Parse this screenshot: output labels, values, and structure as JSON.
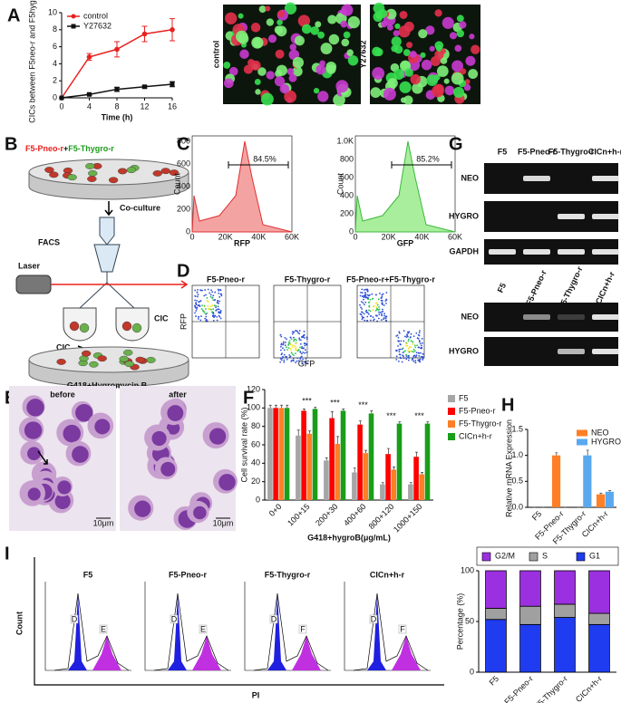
{
  "panel_letters": [
    "A",
    "B",
    "C",
    "D",
    "E",
    "F",
    "G",
    "H",
    "I"
  ],
  "chart_data": [
    {
      "type": "line",
      "x_label": "Time (h)",
      "y_label": "CICs between F5neo-r and F5hygro-r",
      "x": [
        0,
        4,
        8,
        12,
        16
      ],
      "xlim": [
        0,
        16
      ],
      "xticks": [
        0,
        4,
        8,
        12,
        16
      ],
      "ylim": [
        0,
        10
      ],
      "yticks": [
        0,
        2,
        4,
        6,
        8,
        10
      ],
      "legend": "upper-left",
      "series": [
        {
          "name": "control",
          "color": "#e8211f",
          "marker": "circle",
          "values": [
            0,
            4.8,
            5.7,
            7.5,
            8
          ],
          "errors": [
            0,
            0.4,
            0.9,
            0.9,
            1.3
          ]
        },
        {
          "name": "Y27632",
          "color": "#111111",
          "marker": "square",
          "values": [
            0,
            0.4,
            1,
            1.3,
            1.6
          ],
          "errors": [
            0,
            0.1,
            0.25,
            0.15,
            0.3
          ]
        }
      ]
    },
    {
      "type": "bar",
      "x_label": "G418+hygroB(μg/mL)",
      "y_label": "Cell survival rate (%)",
      "categories": [
        "0+0",
        "100+15",
        "200+30",
        "400+60",
        "800+120",
        "1000+150"
      ],
      "ylim": [
        0,
        120
      ],
      "yticks": [
        0,
        20,
        40,
        60,
        80,
        100,
        120
      ],
      "legend": "outside-right",
      "significance": [
        null,
        "***",
        "***",
        "***",
        "***",
        "***"
      ],
      "series": [
        {
          "name": "F5",
          "color": "#a6a6a6",
          "values": [
            100,
            70,
            43,
            30,
            17,
            17
          ],
          "errors": [
            3,
            6,
            3,
            5,
            2,
            2
          ]
        },
        {
          "name": "F5-Pneo-r",
          "color": "#ff0000",
          "values": [
            100,
            97,
            89,
            82,
            50,
            47
          ],
          "errors": [
            3,
            2,
            7,
            4,
            6,
            5
          ]
        },
        {
          "name": "F5-Thygro-r",
          "color": "#ff7f27",
          "values": [
            100,
            72,
            61,
            51,
            33,
            28
          ],
          "errors": [
            3,
            3,
            8,
            3,
            3,
            2
          ]
        },
        {
          "name": "CICn+h-r",
          "color": "#1a9e1a",
          "values": [
            100,
            99,
            97,
            94,
            83,
            83
          ],
          "errors": [
            3,
            2,
            2,
            3,
            2,
            2
          ]
        }
      ]
    },
    {
      "type": "bar",
      "y_label": "Relative mRNA Expression",
      "categories": [
        "F5",
        "F5-Pneo-r",
        "F5-Thygro-r",
        "CICn+h-r"
      ],
      "ylim": [
        0,
        1.5
      ],
      "yticks": [
        {
          "value": 0,
          "label": "0.0"
        },
        {
          "value": 0.5,
          "label": "0.5"
        },
        {
          "value": 1,
          "label": "1.0"
        },
        {
          "value": 1.5,
          "label": "1.5"
        }
      ],
      "legend": "upper-right",
      "series": [
        {
          "name": "NEO",
          "color": "#ff7f27",
          "values": [
            0,
            1,
            0,
            0.25
          ],
          "errors": [
            0,
            0.05,
            0,
            0.02
          ]
        },
        {
          "name": "HYGRO",
          "color": "#5aa9f0",
          "values": [
            0,
            0,
            1,
            0.3
          ],
          "errors": [
            0,
            0,
            0.1,
            0.02
          ]
        }
      ]
    },
    {
      "type": "bar",
      "stacked": true,
      "y_label": "Percentage (%)",
      "categories": [
        "F5",
        "F5-Pneo-r",
        "F5-Thygro-r",
        "CICn+h-r"
      ],
      "ylim": [
        0,
        100
      ],
      "yticks": [
        0,
        50,
        100
      ],
      "legend": "top",
      "series": [
        {
          "name": "G1",
          "color": "#1f3cf0",
          "values": [
            52,
            47,
            54,
            47
          ]
        },
        {
          "name": "S",
          "color": "#a0a0a0",
          "values": [
            11,
            18,
            13,
            11
          ]
        },
        {
          "name": "G2/M",
          "color": "#9b30e0",
          "values": [
            37,
            35,
            33,
            42
          ]
        }
      ]
    }
  ],
  "panel_a_images": [
    "control",
    "Y27632"
  ],
  "panel_b": {
    "strain_1": "F5-Pneo-r",
    "joiner": "+",
    "strain_2": "F5-Thygro-r",
    "step_1": "Co-culture",
    "sorter": "FACS",
    "laser": "Laser",
    "tube_label": "CIC",
    "output": "CIC",
    "medium": "G418+Hygromycin B"
  },
  "panel_c": [
    {
      "y_label": "Count",
      "x_label": "RFP",
      "gate": "84.5%",
      "xticks": [
        "0",
        "20K",
        "40K",
        "60K"
      ],
      "yticks": [
        "0",
        "200",
        "400",
        "600",
        "800"
      ]
    },
    {
      "y_label": "Count",
      "x_label": "GFP",
      "gate": "85.2%",
      "xticks": [
        "0",
        "20K",
        "40K",
        "60K"
      ],
      "yticks": [
        "0",
        "200",
        "400",
        "600",
        "800",
        "1.0K"
      ]
    }
  ],
  "panel_d": {
    "titles": [
      "F5-Pneo-r",
      "F5-Thygro-r",
      "F5-Pneo-r+F5-Thygro-r"
    ],
    "y_label": "RFP",
    "x_label": "GFP"
  },
  "panel_e": {
    "labels": [
      "before",
      "after"
    ],
    "scale": "10μm"
  },
  "panel_g": {
    "lanes": [
      "F5",
      "F5-Pneo-r",
      "F5-Thygro-r",
      "CICn+h-r"
    ],
    "rows_top": [
      "NEO",
      "HYGRO",
      "GAPDH"
    ],
    "rows_bottom": [
      "NEO",
      "HYGRO"
    ]
  },
  "panel_i": {
    "titles": [
      "F5",
      "F5-Pneo-r",
      "F5-Thygro-r",
      "CICn+h-r"
    ],
    "gates": [
      [
        "D",
        "E"
      ],
      [
        "D",
        "E"
      ],
      [
        "D",
        "F"
      ],
      [
        "D",
        "F"
      ]
    ],
    "y_label": "Count",
    "x_label": "PI"
  }
}
